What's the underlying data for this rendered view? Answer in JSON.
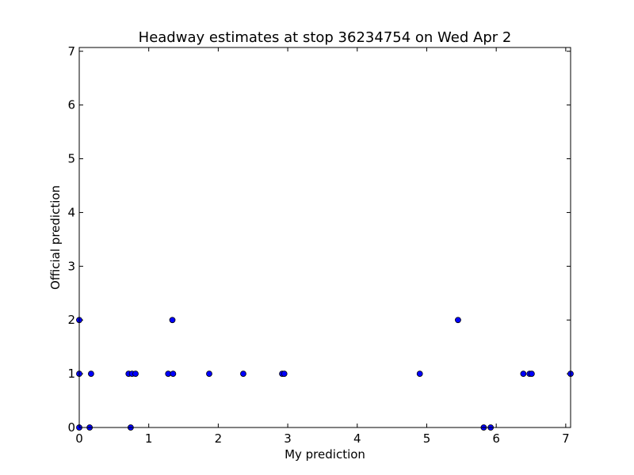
{
  "chart_data": {
    "type": "scatter",
    "title": "Headway estimates at stop 36234754 on Wed Apr 2",
    "xlabel": "My prediction",
    "ylabel": "Official prediction",
    "xlim": [
      0,
      7.07
    ],
    "ylim": [
      0,
      7.07
    ],
    "x_ticks": [
      "0",
      "1",
      "2",
      "3",
      "4",
      "5",
      "6",
      "7"
    ],
    "y_ticks": [
      "0",
      "1",
      "2",
      "3",
      "4",
      "5",
      "6",
      "7"
    ],
    "grid": false,
    "legend": "none",
    "marker_color": "#0000ff",
    "marker_edge_color": "#000000",
    "points": [
      {
        "x": 0.0,
        "y": 2
      },
      {
        "x": 0.0,
        "y": 1
      },
      {
        "x": 0.0,
        "y": 0
      },
      {
        "x": 0.15,
        "y": 0
      },
      {
        "x": 0.17,
        "y": 1
      },
      {
        "x": 0.71,
        "y": 1
      },
      {
        "x": 0.74,
        "y": 0
      },
      {
        "x": 0.76,
        "y": 1
      },
      {
        "x": 0.81,
        "y": 1
      },
      {
        "x": 1.28,
        "y": 1
      },
      {
        "x": 1.34,
        "y": 2
      },
      {
        "x": 1.35,
        "y": 1
      },
      {
        "x": 1.87,
        "y": 1
      },
      {
        "x": 2.36,
        "y": 1
      },
      {
        "x": 2.92,
        "y": 1
      },
      {
        "x": 2.95,
        "y": 1
      },
      {
        "x": 4.9,
        "y": 1
      },
      {
        "x": 5.45,
        "y": 2
      },
      {
        "x": 5.82,
        "y": 0
      },
      {
        "x": 5.92,
        "y": 0
      },
      {
        "x": 6.39,
        "y": 1
      },
      {
        "x": 6.48,
        "y": 1
      },
      {
        "x": 6.51,
        "y": 1
      },
      {
        "x": 7.07,
        "y": 1
      }
    ]
  }
}
